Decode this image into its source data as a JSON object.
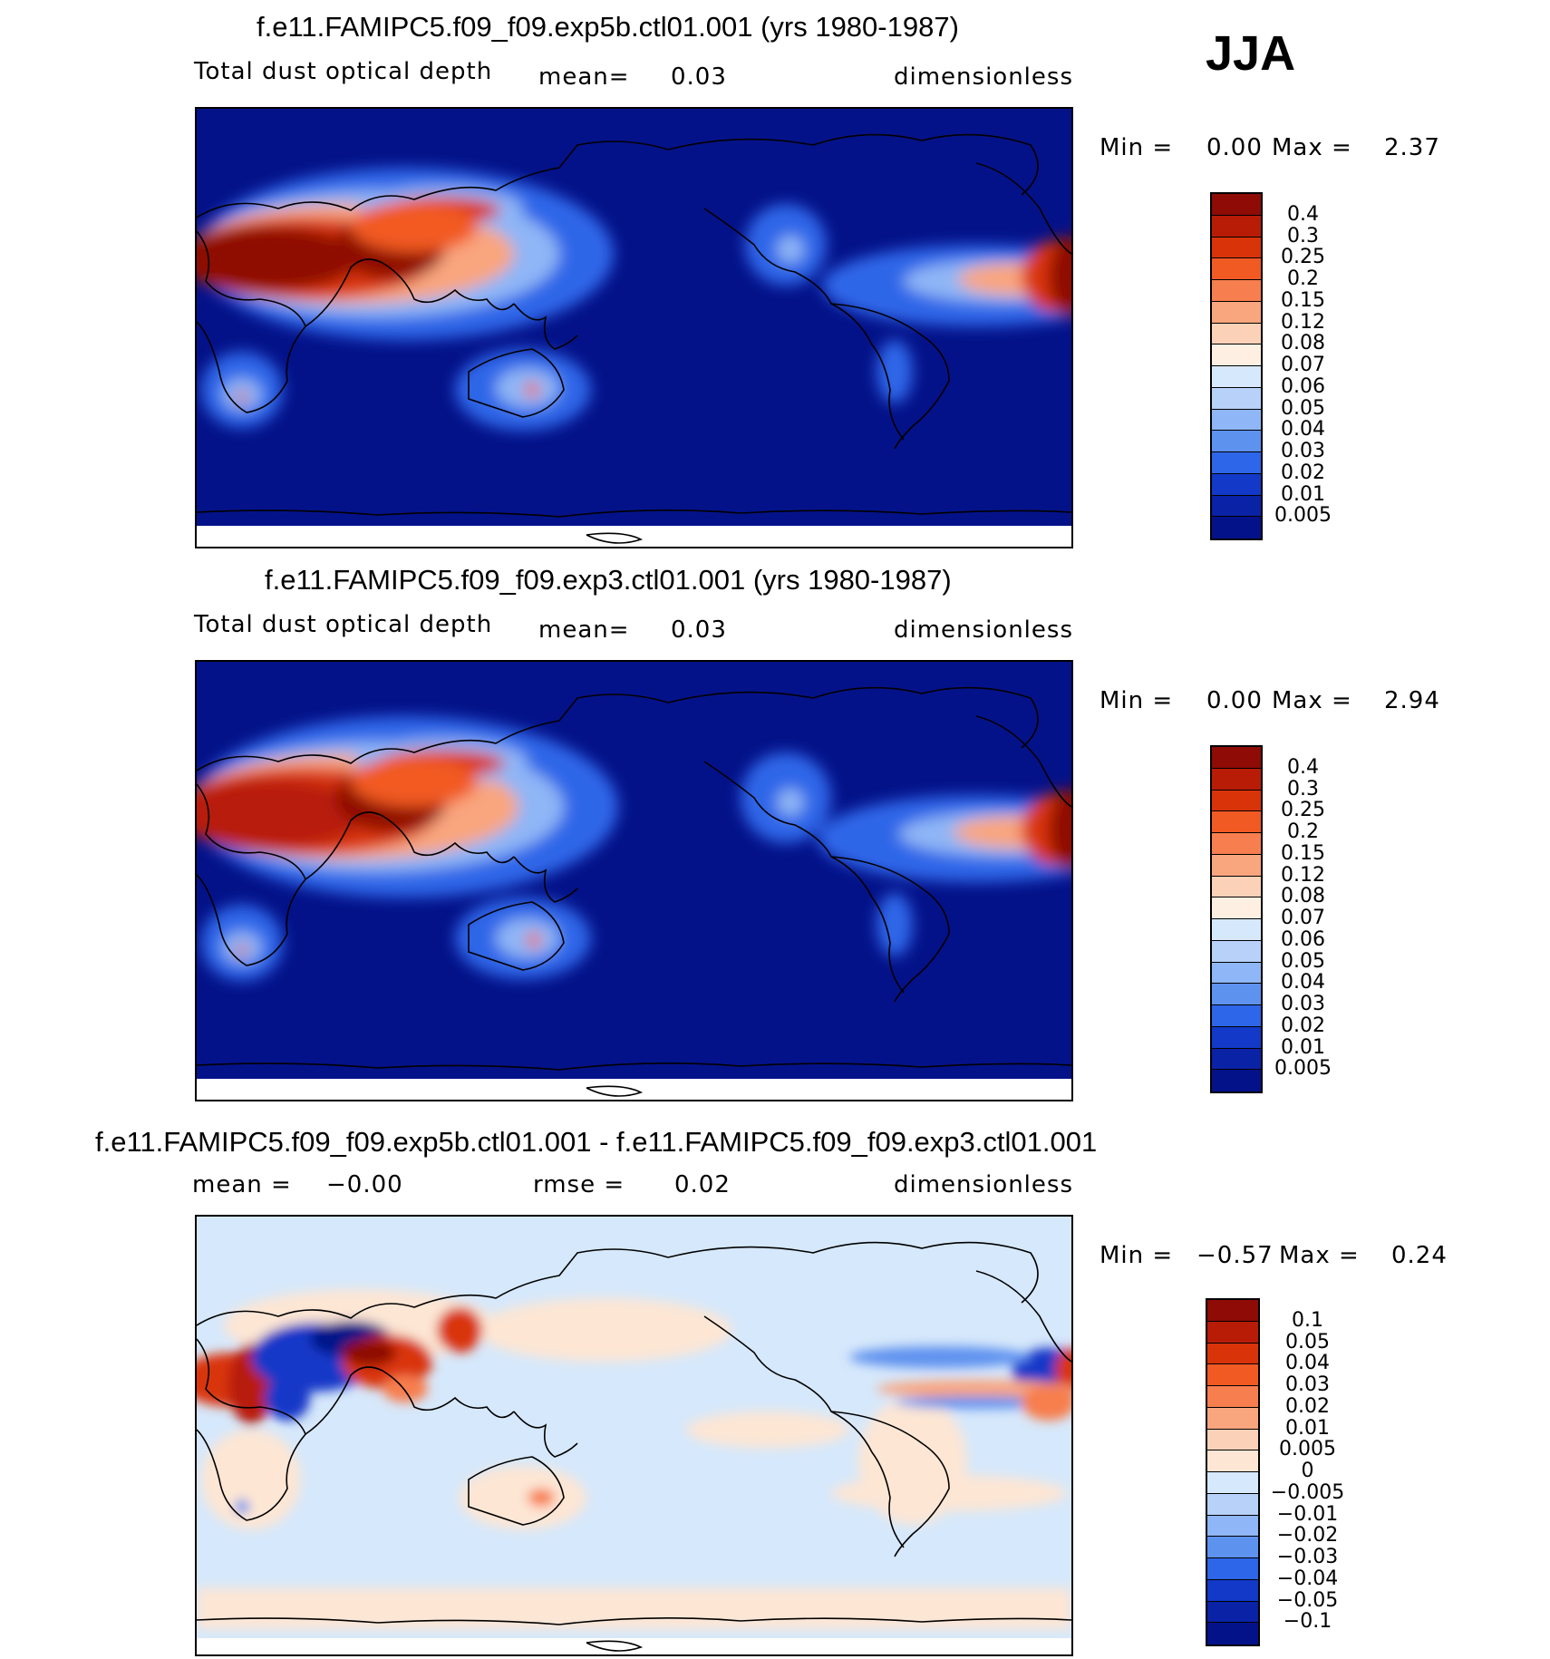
{
  "season": "JJA",
  "panels": [
    {
      "title": "f.e11.FAMIPC5.f09_f09.exp5b.ctl01.001 (yrs 1980-1987)",
      "variable": "Total dust optical depth",
      "stat1_label": "mean=",
      "stat1_value": "0.03",
      "stat2_label": "",
      "stat2_value": "",
      "units": "dimensionless",
      "min_label": "Min =",
      "min_value": "0.00",
      "max_label": "Max =",
      "max_value": "2.37",
      "colorbar_labels": [
        "0.4",
        "0.3",
        "0.25",
        "0.2",
        "0.15",
        "0.12",
        "0.08",
        "0.07",
        "0.06",
        "0.05",
        "0.04",
        "0.03",
        "0.02",
        "0.01",
        "0.005"
      ],
      "colorbar_colors": [
        "#8e0b06",
        "#b81c07",
        "#d93409",
        "#f25a23",
        "#f77e4e",
        "#f9a57e",
        "#fbd1b8",
        "#fdf0e3",
        "#d6e8fb",
        "#b7d1f9",
        "#8fb6f6",
        "#5e92ef",
        "#2d66e8",
        "#1239c8",
        "#0a22a6",
        "#041289"
      ]
    },
    {
      "title": "f.e11.FAMIPC5.f09_f09.exp3.ctl01.001 (yrs 1980-1987)",
      "variable": "Total dust optical depth",
      "stat1_label": "mean=",
      "stat1_value": "0.03",
      "stat2_label": "",
      "stat2_value": "",
      "units": "dimensionless",
      "min_label": "Min =",
      "min_value": "0.00",
      "max_label": "Max =",
      "max_value": "2.94",
      "colorbar_labels": [
        "0.4",
        "0.3",
        "0.25",
        "0.2",
        "0.15",
        "0.12",
        "0.08",
        "0.07",
        "0.06",
        "0.05",
        "0.04",
        "0.03",
        "0.02",
        "0.01",
        "0.005"
      ],
      "colorbar_colors": [
        "#8e0b06",
        "#b81c07",
        "#d93409",
        "#f25a23",
        "#f77e4e",
        "#f9a57e",
        "#fbd1b8",
        "#fdf0e3",
        "#d6e8fb",
        "#b7d1f9",
        "#8fb6f6",
        "#5e92ef",
        "#2d66e8",
        "#1239c8",
        "#0a22a6",
        "#041289"
      ]
    },
    {
      "title": "f.e11.FAMIPC5.f09_f09.exp5b.ctl01.001 - f.e11.FAMIPC5.f09_f09.exp3.ctl01.001",
      "variable": "",
      "stat1_label": "mean =",
      "stat1_value": "−0.00",
      "stat2_label": "rmse =",
      "stat2_value": "0.02",
      "units": "dimensionless",
      "min_label": "Min =",
      "min_value": "−0.57",
      "max_label": "Max =",
      "max_value": "0.24",
      "colorbar_labels": [
        "0.1",
        "0.05",
        "0.04",
        "0.03",
        "0.02",
        "0.01",
        "0.005",
        "0",
        "−0.005",
        "−0.01",
        "−0.02",
        "−0.03",
        "−0.04",
        "−0.05",
        "−0.1"
      ],
      "colorbar_colors": [
        "#8e0b06",
        "#b81c07",
        "#d93409",
        "#f25a23",
        "#f77e4e",
        "#f9a57e",
        "#fbd1b8",
        "#fde6d4",
        "#d6e8fb",
        "#b7d1f9",
        "#8fb6f6",
        "#5e92ef",
        "#2d66e8",
        "#1239c8",
        "#0a22a6",
        "#041289"
      ]
    }
  ]
}
